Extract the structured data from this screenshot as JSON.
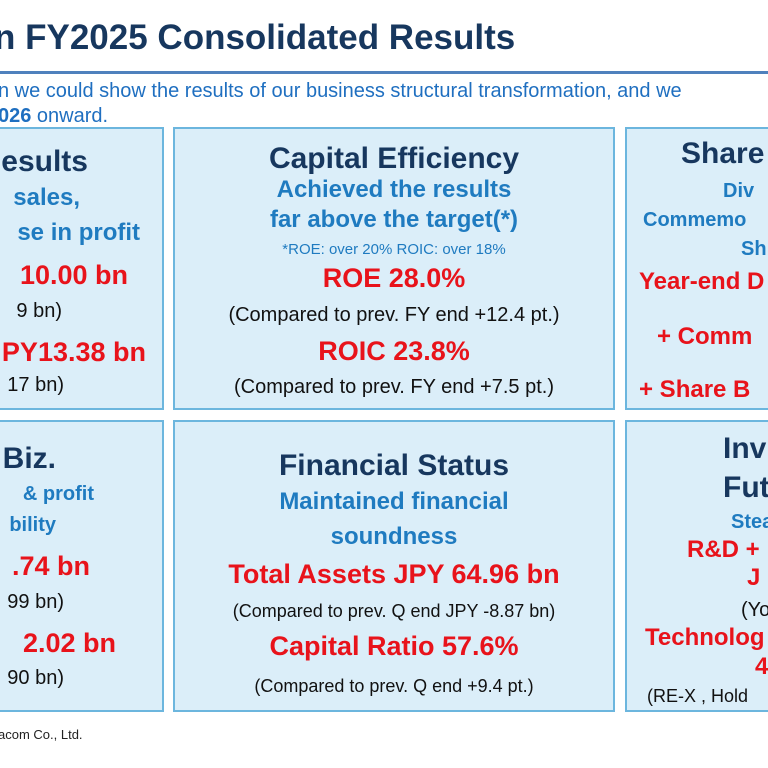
{
  "title": "n FY2025 Consolidated Results",
  "intro": {
    "line1": "n we could show the results of our business structural transformation, and we",
    "line2_bold": "026",
    "line2_rest": " onward."
  },
  "cards": {
    "results": {
      "heading": "esults",
      "sub1": " sales,",
      "sub2": "se in profit",
      "value1": "10.00 bn",
      "note1": "9 bn)",
      "value2": "PY13.38 bn",
      "note2": "17 bn)"
    },
    "capital": {
      "heading": "Capital Efficiency",
      "sub1": "Achieved the results",
      "sub2": "far above the target(*)",
      "footnote": "*ROE: over 20%  ROIC: over 18%",
      "value1": "ROE 28.0%",
      "note1": "(Compared to prev. FY end +12.4 pt.)",
      "value2": "ROIC 23.8%",
      "note2": "(Compared to prev. FY end +7.5 pt.)"
    },
    "share": {
      "heading": "Share",
      "sub1": "Div",
      "sub2": "Commemo",
      "sub3": "Sh",
      "value1": "Year-end D",
      "value2": "+ Comm",
      "value3": "+ Share B"
    },
    "biz": {
      "heading": "Biz.",
      "sub1": " & profit",
      "sub2": "bility",
      "value1": ".74 bn",
      "note1": "99 bn)",
      "value2": " 2.02 bn",
      "note2": "90 bn)"
    },
    "financial": {
      "heading": "Financial Status",
      "sub1": "Maintained financial",
      "sub2": "soundness",
      "value1": "Total Assets JPY 64.96 bn",
      "note1": "(Compared to prev. Q end JPY -8.87 bn)",
      "value2": "Capital Ratio 57.6%",
      "note2": "(Compared to prev. Q end +9.4 pt.)"
    },
    "invest": {
      "heading1": "Inv",
      "heading2": "Fut",
      "sub1": "Stea",
      "value1": "R&D +",
      "value2": "J",
      "note1": "(Yo",
      "value3": "Technolog",
      "value4": "4",
      "note2": "(RE-X , Hold"
    }
  },
  "copyright": "acom Co., Ltd.",
  "colors": {
    "title": "#17375e",
    "accent_blue": "#1f7bc0",
    "highlight_red": "#e8131b",
    "card_bg": "#dbeef9",
    "card_border": "#6cb6de"
  }
}
